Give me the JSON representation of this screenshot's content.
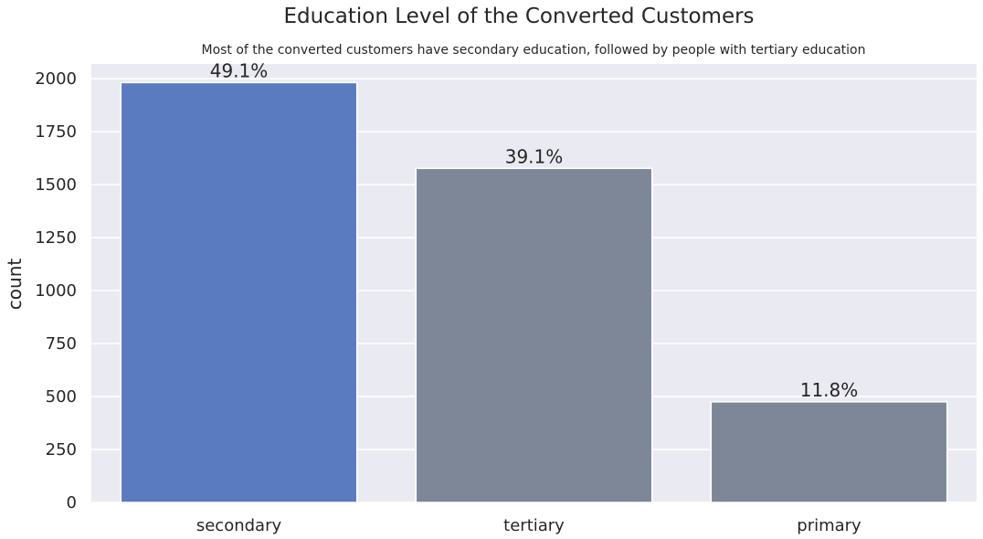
{
  "chart_data": {
    "type": "bar",
    "title": "Education Level of the Converted Customers",
    "subtitle": "Most of the converted customers have secondary education, followed by people with tertiary education",
    "xlabel": "",
    "ylabel": "count",
    "categories": [
      "secondary",
      "tertiary",
      "primary"
    ],
    "values": [
      1982,
      1577,
      475
    ],
    "data_labels": [
      "49.1%",
      "39.1%",
      "11.8%"
    ],
    "bar_colors": [
      "#5a7bc0",
      "#7e8797",
      "#7e8797"
    ],
    "ylim": [
      0,
      2070
    ],
    "yticks": [
      0,
      250,
      500,
      750,
      1000,
      1250,
      1500,
      1750,
      2000
    ],
    "grid": true,
    "legend": "none"
  },
  "colors": {
    "plot_background": "#eaeaf2",
    "grid": "#ffffff",
    "highlight_bar": "#5a7bc0",
    "default_bar": "#7e8797"
  }
}
